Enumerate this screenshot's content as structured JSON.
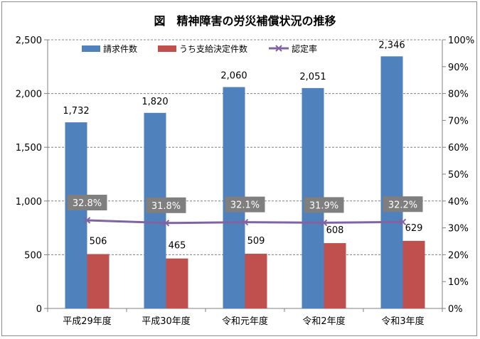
{
  "chart_data": {
    "type": "bar",
    "title": "図　精神障害の労災補償状況の推移",
    "categories": [
      "平成29年度",
      "平成30年度",
      "令和元年度",
      "令和2年度",
      "令和3年度"
    ],
    "series": [
      {
        "name": "請求件数",
        "kind": "bar",
        "axis": "left",
        "color": "#4f81bd",
        "values": [
          1732,
          1820,
          2060,
          2051,
          2346
        ],
        "labels": [
          "1,732",
          "1,820",
          "2,060",
          "2,051",
          "2,346"
        ]
      },
      {
        "name": "うち支給決定件数",
        "kind": "bar",
        "axis": "left",
        "color": "#c0504d",
        "values": [
          506,
          465,
          509,
          608,
          629
        ],
        "labels": [
          "506",
          "465",
          "509",
          "608",
          "629"
        ]
      },
      {
        "name": "認定率",
        "kind": "line",
        "axis": "right",
        "color": "#8064a2",
        "values": [
          32.8,
          31.8,
          32.1,
          31.9,
          32.2
        ],
        "labels": [
          "32.8%",
          "31.8%",
          "32.1%",
          "31.9%",
          "32.2%"
        ]
      }
    ],
    "y_left": {
      "min": 0,
      "max": 2500,
      "ticks": [
        0,
        500,
        1000,
        1500,
        2000,
        2500
      ],
      "tick_labels": [
        "0",
        "500",
        "1,000",
        "1,500",
        "2,000",
        "2,500"
      ]
    },
    "y_right": {
      "min": 0,
      "max": 100,
      "ticks": [
        0,
        10,
        20,
        30,
        40,
        50,
        60,
        70,
        80,
        90,
        100
      ],
      "tick_labels": [
        "0%",
        "10%",
        "20%",
        "30%",
        "40%",
        "50%",
        "60%",
        "70%",
        "80%",
        "90%",
        "100%"
      ]
    },
    "grid": "horizontal-dashed",
    "legend_position": "top"
  }
}
